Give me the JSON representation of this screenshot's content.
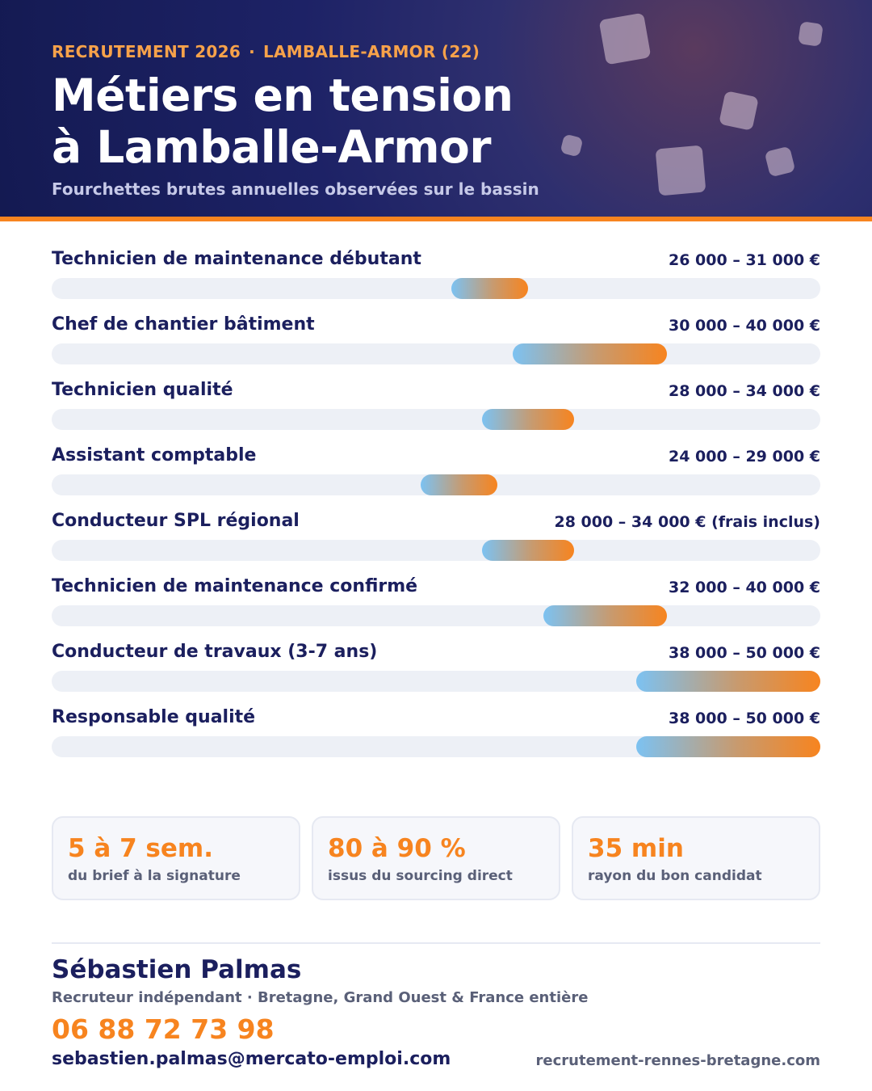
{
  "header": {
    "eyebrow_left": "RECRUTEMENT 2026",
    "eyebrow_sep": "·",
    "eyebrow_right": "LAMBALLE-ARMOR (22)",
    "title_line1": "Métiers en tension",
    "title_line2": "à Lamballe-Armor",
    "subtitle": "Fourchettes brutes annuelles observées sur le bassin"
  },
  "colors": {
    "navy": "#1b1f5e",
    "orange": "#f7841f",
    "bar_start": "#7cc2f2",
    "bar_end": "#f7841f",
    "track": "#edf0f6"
  },
  "chart_data": {
    "type": "bar",
    "orientation": "horizontal-range",
    "unit": "€",
    "categories": [
      "Technicien de maintenance débutant",
      "Chef de chantier bâtiment",
      "Technicien qualité",
      "Assistant comptable",
      "Conducteur SPL régional",
      "Technicien de maintenance confirmé",
      "Conducteur de travaux (3-7 ans)",
      "Responsable qualité"
    ],
    "ranges": [
      [
        26000,
        31000
      ],
      [
        30000,
        40000
      ],
      [
        28000,
        34000
      ],
      [
        24000,
        29000
      ],
      [
        28000,
        34000
      ],
      [
        32000,
        40000
      ],
      [
        38000,
        50000
      ],
      [
        38000,
        50000
      ]
    ],
    "value_labels": [
      "26 000 – 31 000 €",
      "30 000 – 40 000 €",
      "28 000 – 34 000 €",
      "24 000 – 29 000 €",
      "28 000 – 34 000 € (frais inclus)",
      "32 000 – 40 000 €",
      "38 000 – 50 000 €",
      "38 000 – 50 000 €"
    ],
    "xlim": [
      0,
      50000
    ],
    "grid": false,
    "legend": "none"
  },
  "stats": [
    {
      "value": "5 à 7 sem.",
      "label": "du brief à la signature"
    },
    {
      "value": "80 à 90 %",
      "label": "issus du sourcing direct"
    },
    {
      "value": "35 min",
      "label": "rayon du bon candidat"
    }
  ],
  "contact": {
    "name": "Sébastien Palmas",
    "role": "Recruteur indépendant · Bretagne, Grand Ouest & France entière",
    "phone": "06 88 72 73 98",
    "email": "sebastien.palmas@mercato-emploi.com",
    "website": "recrutement-rennes-bretagne.com"
  }
}
